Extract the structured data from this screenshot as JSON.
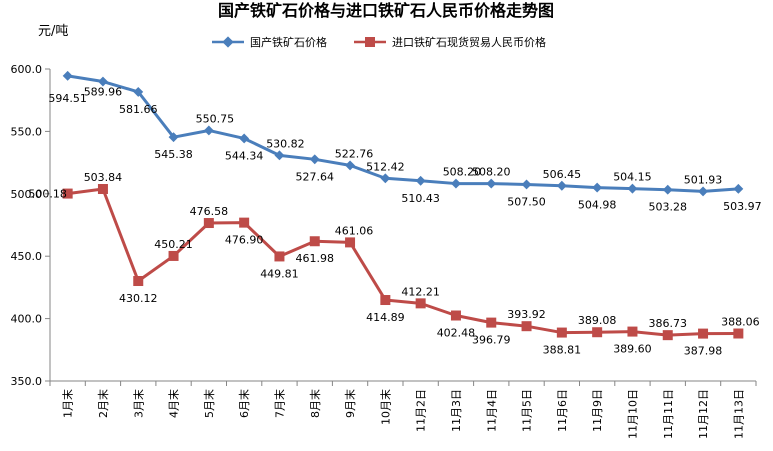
{
  "chart_data": {
    "type": "line",
    "title": "国产铁矿石价格与进口铁矿石人民币价格走势图",
    "ylabel": "元/吨",
    "xlabel": "",
    "ylim": [
      350,
      600
    ],
    "yticks": [
      "350.0",
      "400.0",
      "450.0",
      "500.0",
      "550.0",
      "600.0"
    ],
    "grid": false,
    "legend_position": "top",
    "categories": [
      "1月末",
      "2月末",
      "3月末",
      "4月末",
      "5月末",
      "6月末",
      "7月末",
      "8月末",
      "9月末",
      "10月末",
      "11月2日",
      "11月3日",
      "11月4日",
      "11月5日",
      "11月6日",
      "11月9日",
      "11月10日",
      "11月11日",
      "11月12日",
      "11月13日"
    ],
    "series": [
      {
        "name": "国产铁矿石价格",
        "color": "#4a7ebb",
        "marker": "diamond",
        "values": [
          594.51,
          589.96,
          581.66,
          545.38,
          550.75,
          544.34,
          530.82,
          527.64,
          522.76,
          512.42,
          510.43,
          508.2,
          508.2,
          507.5,
          506.45,
          504.98,
          504.15,
          503.28,
          501.93,
          503.97
        ],
        "labels": [
          "594.51",
          "589.96",
          "581.66",
          "545.38",
          "550.75",
          "544.34",
          "530.82",
          "527.64",
          "522.76",
          "512.42",
          "510.43",
          "508.20",
          "508.20",
          "507.50",
          "506.45",
          "504.98",
          "504.15",
          "503.28",
          "501.93",
          "503.97"
        ]
      },
      {
        "name": "进口铁矿石现货贸易人民币价格",
        "color": "#be4b48",
        "marker": "square",
        "values": [
          500.18,
          503.84,
          430.12,
          450.21,
          476.58,
          476.9,
          449.81,
          461.98,
          461.06,
          414.89,
          412.21,
          402.48,
          396.79,
          393.92,
          388.81,
          389.08,
          389.6,
          386.73,
          387.98,
          388.06
        ],
        "labels": [
          "500.18",
          "503.84",
          "430.12",
          "450.21",
          "476.58",
          "476.90",
          "449.81",
          "461.98",
          "461.06",
          "414.89",
          "412.21",
          "402.48",
          "396.79",
          "393.92",
          "388.81",
          "389.08",
          "389.60",
          "386.73",
          "387.98",
          "388.06"
        ]
      }
    ]
  }
}
